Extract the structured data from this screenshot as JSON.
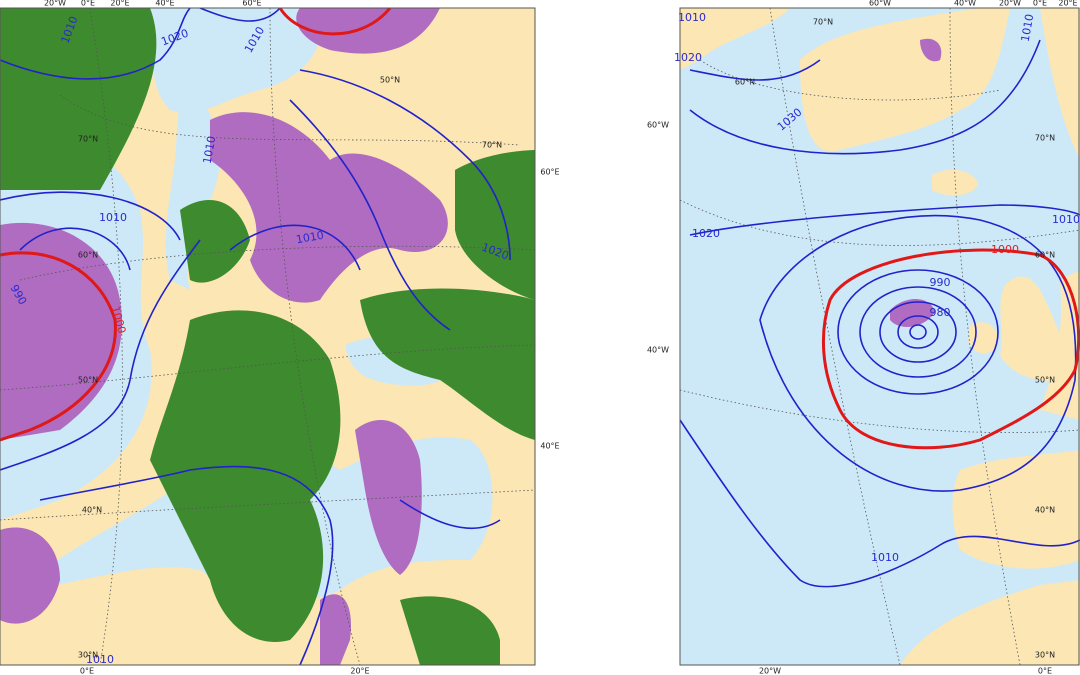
{
  "left_map": {
    "lon_labels": [
      "20°W",
      "0°E",
      "20°E",
      "40°E",
      "60°E",
      "60°E",
      "40°E",
      "0°E",
      "20°E"
    ],
    "lat_labels": [
      "70°N",
      "60°N",
      "50°N",
      "40°N",
      "30°N",
      "50°N",
      "70°N"
    ],
    "isobar_labels": [
      "1010",
      "1020",
      "1010",
      "1010",
      "1010",
      "1020",
      "990",
      "1000",
      "1010",
      "1010"
    ]
  },
  "right_map": {
    "lon_labels": [
      "60°W",
      "40°W",
      "20°W",
      "0°E",
      "20°E",
      "60°W",
      "40°W",
      "20°W",
      "0°E"
    ],
    "lat_labels": [
      "70°N",
      "60°N",
      "70°N",
      "60°N",
      "50°N",
      "40°N",
      "30°N"
    ],
    "isobar_labels": [
      "1010",
      "1020",
      "1030",
      "1020",
      "1010",
      "1000",
      "990",
      "980",
      "1010",
      "1010"
    ]
  }
}
